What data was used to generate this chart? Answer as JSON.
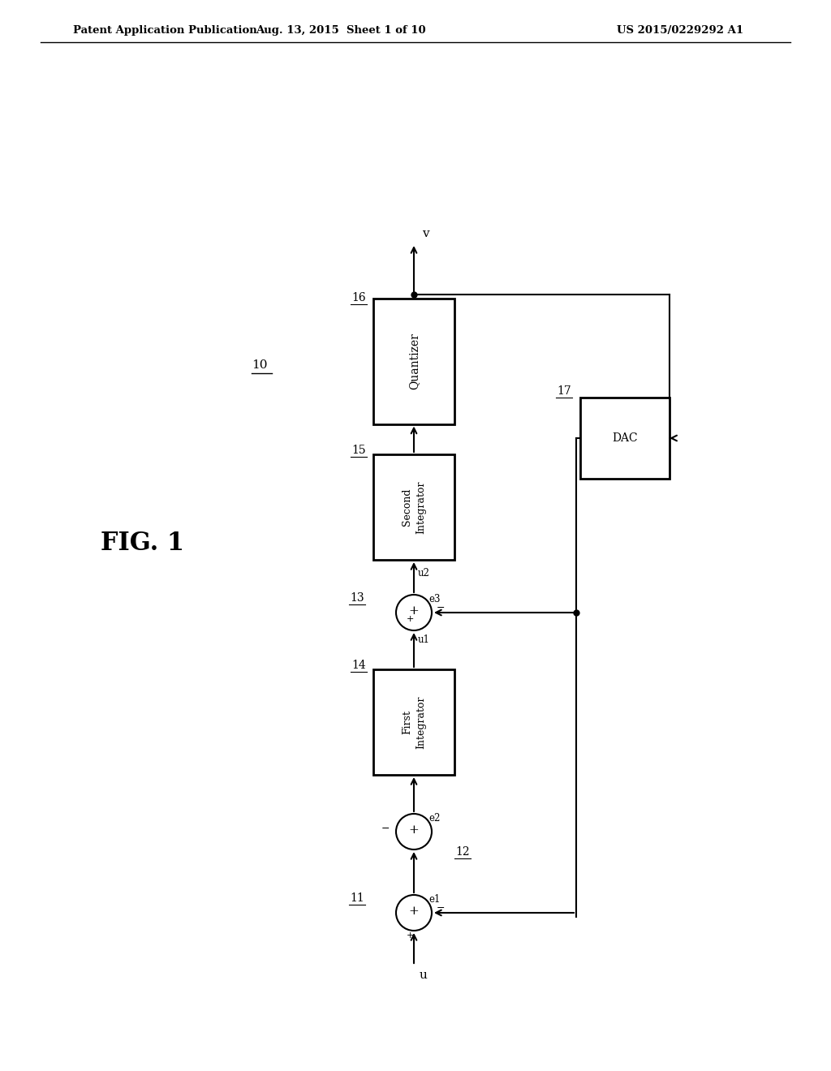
{
  "background_color": "#ffffff",
  "header_left": "Patent Application Publication",
  "header_center": "Aug. 13, 2015  Sheet 1 of 10",
  "header_right": "US 2015/0229292 A1",
  "fig_label": "FIG. 1",
  "system_label": "10"
}
